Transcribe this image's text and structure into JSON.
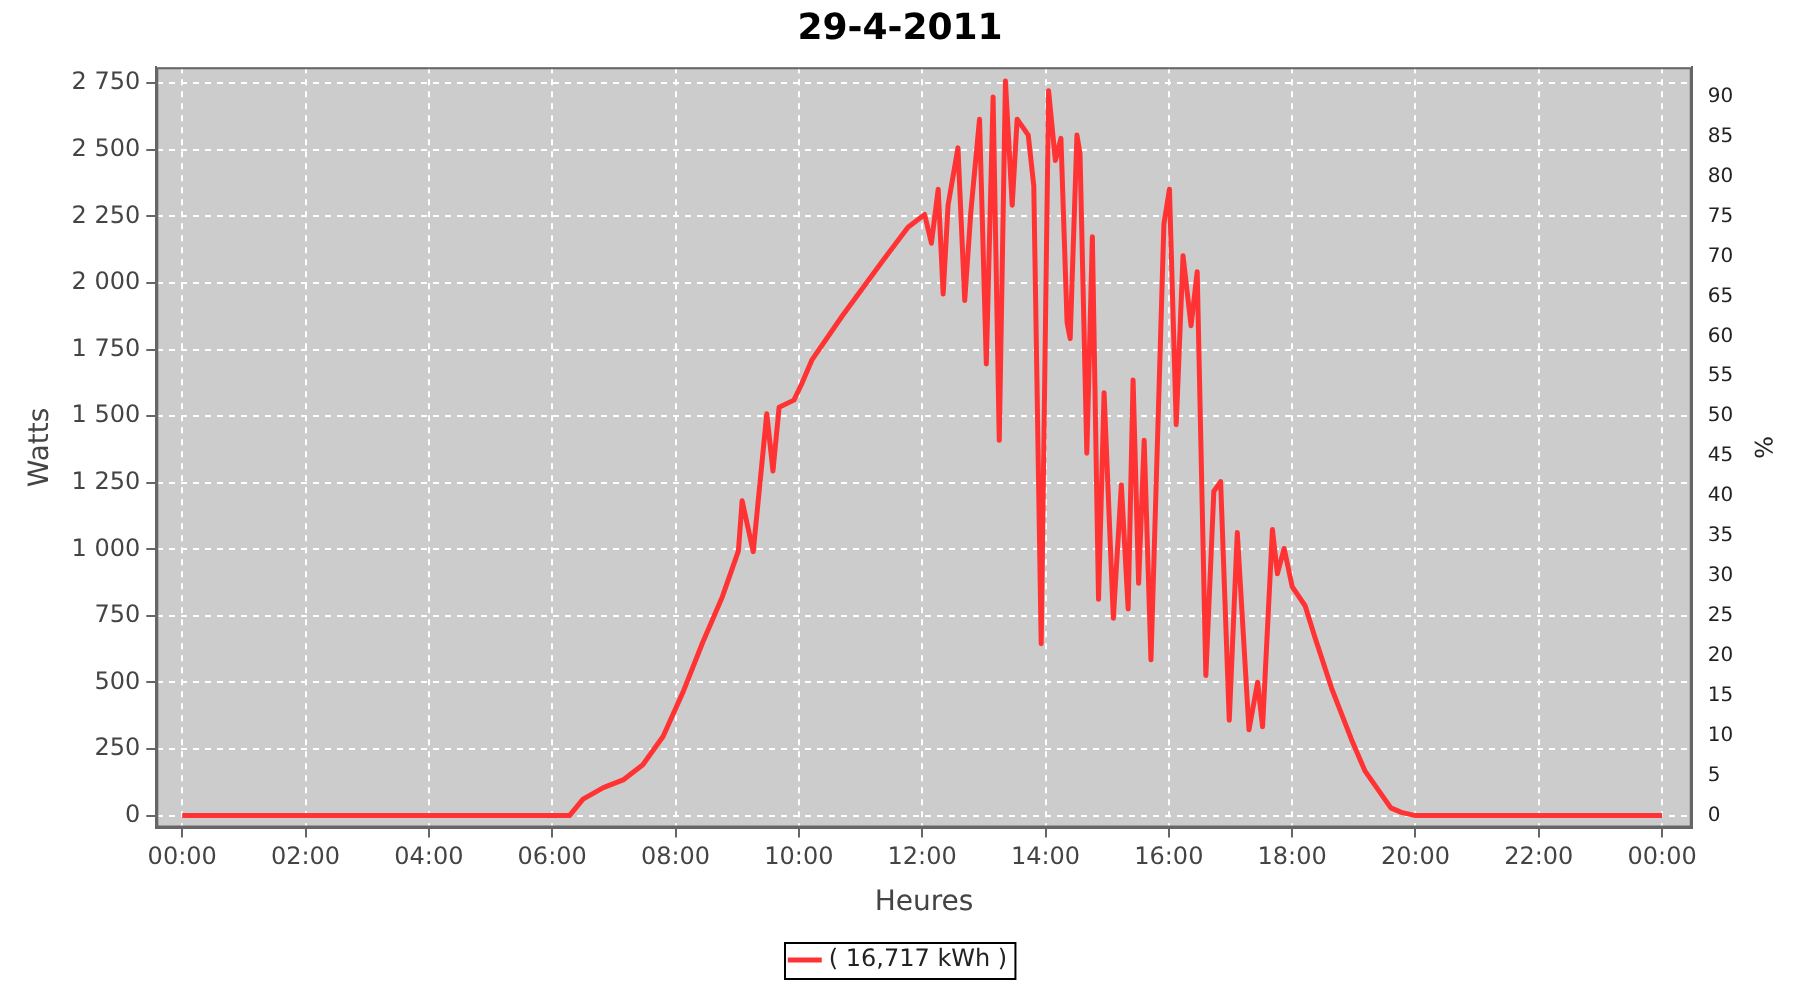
{
  "chart_data": {
    "type": "line",
    "title": "29-4-2011",
    "xlabel": "Heures",
    "ylabel": "Watts",
    "y2label": "%",
    "x": [
      0,
      6.28,
      6.5,
      6.83,
      7.15,
      7.47,
      7.8,
      8.12,
      8.44,
      8.76,
      9.02,
      9.08,
      9.26,
      9.48,
      9.58,
      9.68,
      9.92,
      10.05,
      10.21,
      10.7,
      11.34,
      11.77,
      12.04,
      12.15,
      12.26,
      12.34,
      12.42,
      12.58,
      12.69,
      12.79,
      12.93,
      13.04,
      13.15,
      13.25,
      13.35,
      13.46,
      13.54,
      13.72,
      13.81,
      13.93,
      14.05,
      14.16,
      14.25,
      14.35,
      14.4,
      14.51,
      14.56,
      14.67,
      14.76,
      14.86,
      14.95,
      15.1,
      15.23,
      15.34,
      15.42,
      15.51,
      15.6,
      15.71,
      15.85,
      15.92,
      16.01,
      16.12,
      16.23,
      16.36,
      16.46,
      16.6,
      16.73,
      16.84,
      16.98,
      17.11,
      17.3,
      17.44,
      17.52,
      17.68,
      17.76,
      17.87,
      18.0,
      18.21,
      18.37,
      18.64,
      18.96,
      19.18,
      19.6,
      19.77,
      20,
      24
    ],
    "series": [
      {
        "name": "( 16,717 kWh )",
        "color": "#ff3333",
        "values": [
          0,
          0,
          62,
          105,
          134,
          191,
          298,
          463,
          650,
          822,
          994,
          1182,
          991,
          1509,
          1294,
          1533,
          1560,
          1623,
          1710,
          1875,
          2077,
          2209,
          2257,
          2149,
          2352,
          1958,
          2292,
          2507,
          1934,
          2269,
          2615,
          1696,
          2698,
          1409,
          2758,
          2292,
          2615,
          2555,
          2364,
          645,
          2722,
          2460,
          2543,
          1851,
          1791,
          2555,
          2484,
          1361,
          2173,
          812,
          1588,
          741,
          1242,
          776,
          1636,
          872,
          1409,
          585,
          1672,
          2221,
          2352,
          1468,
          2102,
          1839,
          2042,
          526,
          1218,
          1254,
          358,
          1063,
          322,
          501,
          334,
          1074,
          908,
          1003,
          860,
          788,
          669,
          478,
          287,
          168,
          29,
          12,
          0,
          0
        ]
      }
    ],
    "xlim": [
      -0.42,
      24.48
    ],
    "xticks": [
      {
        "value": 0,
        "label": "00:00"
      },
      {
        "value": 2,
        "label": "02:00"
      },
      {
        "value": 4,
        "label": "04:00"
      },
      {
        "value": 6,
        "label": "06:00"
      },
      {
        "value": 8,
        "label": "08:00"
      },
      {
        "value": 10,
        "label": "10:00"
      },
      {
        "value": 12,
        "label": "12:00"
      },
      {
        "value": 14,
        "label": "14:00"
      },
      {
        "value": 16,
        "label": "16:00"
      },
      {
        "value": 18,
        "label": "18:00"
      },
      {
        "value": 20,
        "label": "20:00"
      },
      {
        "value": 22,
        "label": "22:00"
      },
      {
        "value": 24,
        "label": "00:00"
      }
    ],
    "ylim": [
      -45,
      2810
    ],
    "yticks": [
      0,
      250,
      500,
      750,
      {
        "value": 1000,
        "label": "1 000"
      },
      {
        "value": 1250,
        "label": "1 250"
      },
      {
        "value": 1500,
        "label": "1 500"
      },
      {
        "value": 1750,
        "label": "1 750"
      },
      {
        "value": 2000,
        "label": "2 000"
      },
      {
        "value": 2250,
        "label": "2 250"
      },
      {
        "value": 2500,
        "label": "2 500"
      },
      {
        "value": 2750,
        "label": "2 750"
      }
    ],
    "y2lim": [
      -1.5,
      93.7
    ],
    "y2ticks": [
      0,
      5,
      10,
      15,
      20,
      25,
      30,
      35,
      40,
      45,
      50,
      55,
      60,
      65,
      70,
      75,
      80,
      85,
      90
    ],
    "grid": true,
    "legend": "bottom",
    "marker": "none",
    "line_style": "solid"
  }
}
